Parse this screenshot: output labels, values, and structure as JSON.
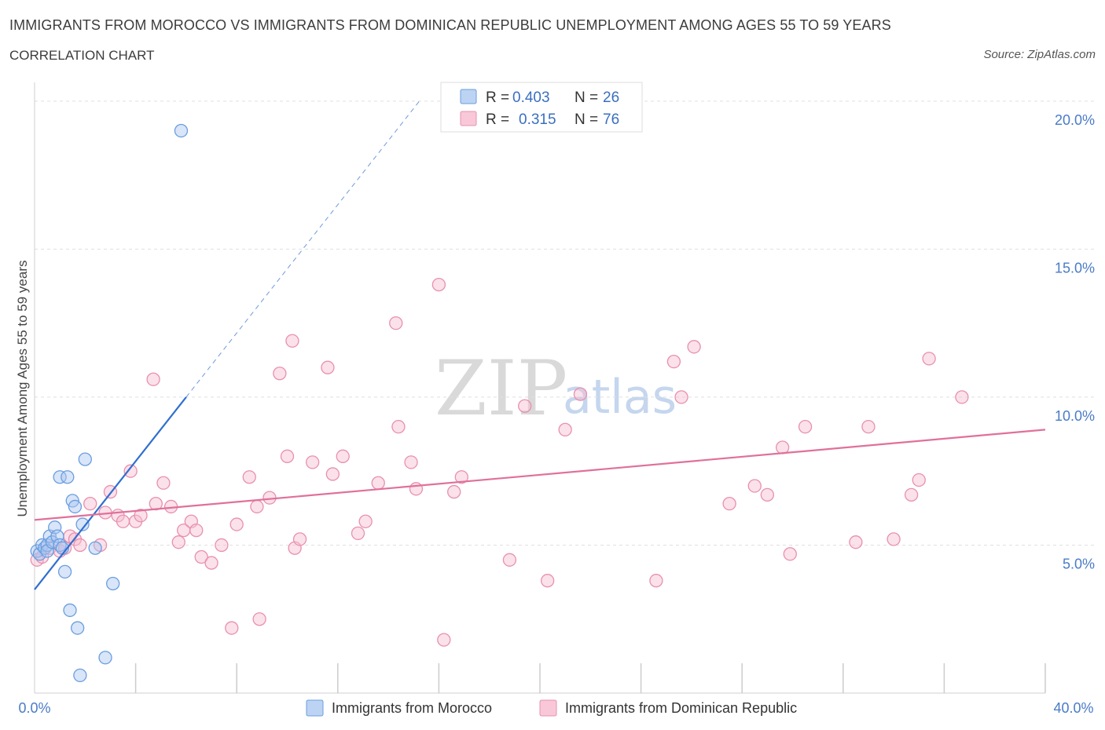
{
  "title": "IMMIGRANTS FROM MOROCCO VS IMMIGRANTS FROM DOMINICAN REPUBLIC UNEMPLOYMENT AMONG AGES 55 TO 59 YEARS",
  "subtitle": "CORRELATION CHART",
  "source": "Source: ZipAtlas.com",
  "watermark": {
    "zip": "ZIP",
    "atlas": "atlas"
  },
  "legend": {
    "series1": {
      "r_label": "R =",
      "r_value": "0.403",
      "n_label": "N =",
      "n_value": "26"
    },
    "series2": {
      "r_label": "R =",
      "r_value": "0.315",
      "n_label": "N =",
      "n_value": "76"
    }
  },
  "colors": {
    "morocco_fill": "#aac6f0",
    "morocco_stroke": "#6a9ee0",
    "morocco_line": "#2f6fd0",
    "dominican_fill": "#f6bcd0",
    "dominican_stroke": "#e890ae",
    "dominican_line": "#e0709a",
    "grid": "#e0e0e0",
    "tick": "#4a7bc8"
  },
  "chart_data": {
    "type": "scatter",
    "title": "IMMIGRANTS FROM MOROCCO VS IMMIGRANTS FROM DOMINICAN REPUBLIC UNEMPLOYMENT AMONG AGES 55 TO 59 YEARS",
    "xlabel": "",
    "ylabel": "Unemployment Among Ages 55 to 59 years",
    "xlim": [
      0,
      40
    ],
    "ylim": [
      0,
      20.3
    ],
    "x_tick_labels": [
      "0.0%",
      "40.0%"
    ],
    "y_ticks": [
      5,
      10,
      15,
      20
    ],
    "y_tick_labels": [
      "5.0%",
      "10.0%",
      "15.0%",
      "20.0%"
    ],
    "series": [
      {
        "name": "Immigrants from Morocco",
        "r": 0.403,
        "n": 26,
        "trend": {
          "x0": 0,
          "y0": 3.5,
          "x1": 6,
          "y1": 10.0,
          "dashed_to_x": 15.3
        },
        "points": [
          [
            0.1,
            4.8
          ],
          [
            0.2,
            4.7
          ],
          [
            0.3,
            5.0
          ],
          [
            0.4,
            4.9
          ],
          [
            0.5,
            5.0
          ],
          [
            0.5,
            4.8
          ],
          [
            0.6,
            5.3
          ],
          [
            0.7,
            5.1
          ],
          [
            0.8,
            5.6
          ],
          [
            0.9,
            5.3
          ],
          [
            1.0,
            5.0
          ],
          [
            1.0,
            7.3
          ],
          [
            1.1,
            4.9
          ],
          [
            1.2,
            4.1
          ],
          [
            1.3,
            7.3
          ],
          [
            1.4,
            2.8
          ],
          [
            1.5,
            6.5
          ],
          [
            1.6,
            6.3
          ],
          [
            1.7,
            2.2
          ],
          [
            1.8,
            0.6
          ],
          [
            1.9,
            5.7
          ],
          [
            2.0,
            7.9
          ],
          [
            2.4,
            4.9
          ],
          [
            2.8,
            1.2
          ],
          [
            3.1,
            3.7
          ],
          [
            5.8,
            19.0
          ]
        ]
      },
      {
        "name": "Immigrants from Dominican Republic",
        "r": 0.315,
        "n": 76,
        "trend": {
          "x0": 0,
          "y0": 5.85,
          "x1": 40,
          "y1": 8.9
        },
        "points": [
          [
            0.1,
            4.5
          ],
          [
            0.3,
            4.6
          ],
          [
            0.6,
            4.9
          ],
          [
            1.0,
            4.8
          ],
          [
            1.2,
            4.9
          ],
          [
            1.4,
            5.3
          ],
          [
            1.6,
            5.2
          ],
          [
            1.8,
            5.0
          ],
          [
            2.2,
            6.4
          ],
          [
            2.6,
            5.0
          ],
          [
            2.8,
            6.1
          ],
          [
            3.0,
            6.8
          ],
          [
            3.3,
            6.0
          ],
          [
            3.5,
            5.8
          ],
          [
            3.8,
            7.5
          ],
          [
            4.0,
            5.8
          ],
          [
            4.2,
            6.0
          ],
          [
            4.7,
            10.6
          ],
          [
            4.8,
            6.4
          ],
          [
            5.1,
            7.1
          ],
          [
            5.4,
            6.3
          ],
          [
            5.7,
            5.1
          ],
          [
            5.9,
            5.5
          ],
          [
            6.2,
            5.8
          ],
          [
            6.4,
            5.5
          ],
          [
            6.6,
            4.6
          ],
          [
            7.0,
            4.4
          ],
          [
            7.4,
            5.0
          ],
          [
            7.8,
            2.2
          ],
          [
            8.0,
            5.7
          ],
          [
            8.5,
            7.3
          ],
          [
            8.8,
            6.3
          ],
          [
            8.9,
            2.5
          ],
          [
            9.3,
            6.6
          ],
          [
            9.7,
            10.8
          ],
          [
            10.0,
            8.0
          ],
          [
            10.2,
            11.9
          ],
          [
            10.3,
            4.9
          ],
          [
            10.5,
            5.2
          ],
          [
            11.0,
            7.8
          ],
          [
            11.6,
            11.0
          ],
          [
            11.8,
            7.4
          ],
          [
            12.2,
            8.0
          ],
          [
            12.8,
            5.4
          ],
          [
            13.1,
            5.8
          ],
          [
            13.6,
            7.1
          ],
          [
            14.3,
            12.5
          ],
          [
            14.4,
            9.0
          ],
          [
            14.9,
            7.8
          ],
          [
            15.1,
            6.9
          ],
          [
            16.0,
            13.8
          ],
          [
            16.2,
            1.8
          ],
          [
            16.6,
            6.8
          ],
          [
            16.9,
            7.3
          ],
          [
            18.8,
            4.5
          ],
          [
            19.4,
            9.7
          ],
          [
            20.3,
            3.8
          ],
          [
            21.0,
            8.9
          ],
          [
            21.6,
            10.1
          ],
          [
            24.6,
            3.8
          ],
          [
            25.3,
            11.2
          ],
          [
            25.6,
            10.0
          ],
          [
            26.1,
            11.7
          ],
          [
            27.5,
            6.4
          ],
          [
            28.5,
            7.0
          ],
          [
            29.0,
            6.7
          ],
          [
            29.6,
            8.3
          ],
          [
            29.9,
            4.7
          ],
          [
            30.5,
            9.0
          ],
          [
            32.5,
            5.1
          ],
          [
            33.0,
            9.0
          ],
          [
            34.0,
            5.2
          ],
          [
            34.7,
            6.7
          ],
          [
            35.0,
            7.2
          ],
          [
            35.4,
            11.3
          ],
          [
            36.7,
            10.0
          ]
        ]
      }
    ]
  },
  "bottom_legend": {
    "series1_label": "Immigrants from Morocco",
    "series2_label": "Immigrants from Dominican Republic"
  }
}
